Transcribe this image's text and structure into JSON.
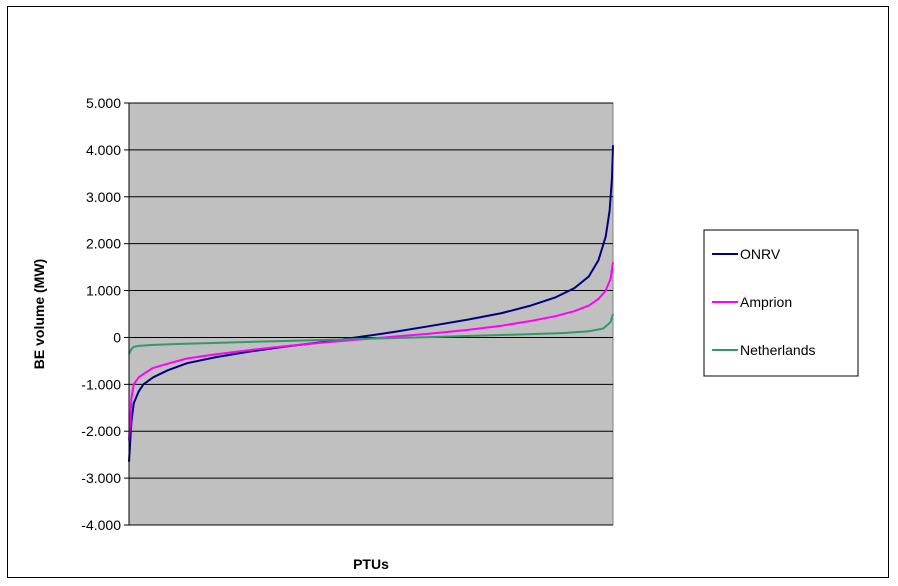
{
  "chart_data": {
    "type": "line",
    "title": "",
    "xlabel": "PTUs",
    "ylabel": "BE volume (MW)",
    "ylim": [
      -4000,
      5000
    ],
    "yticks": [
      5000,
      4000,
      3000,
      2000,
      1000,
      0,
      -1000,
      -2000,
      -3000,
      -4000
    ],
    "ytick_labels": [
      "5.000",
      "4.000",
      "3.000",
      "2.000",
      "1.000",
      "0",
      "-1.000",
      "-2.000",
      "-3.000",
      "-4.000"
    ],
    "xlim": [
      0,
      1
    ],
    "grid": true,
    "legend_position": "right",
    "plot_background": "#C0C0C0",
    "series": [
      {
        "name": "ONRV",
        "color": "#000080",
        "x": [
          0,
          0.005,
          0.01,
          0.02,
          0.03,
          0.05,
          0.08,
          0.12,
          0.18,
          0.25,
          0.32,
          0.4,
          0.47,
          0.55,
          0.62,
          0.7,
          0.77,
          0.83,
          0.88,
          0.92,
          0.95,
          0.97,
          0.985,
          0.993,
          0.998,
          1.0
        ],
        "values": [
          -2650,
          -1800,
          -1400,
          -1150,
          -1000,
          -850,
          -700,
          -550,
          -420,
          -300,
          -200,
          -100,
          0,
          120,
          240,
          380,
          520,
          680,
          850,
          1050,
          1300,
          1650,
          2150,
          2700,
          3400,
          4100
        ]
      },
      {
        "name": "Amprion",
        "color": "#FF00FF",
        "x": [
          0,
          0.005,
          0.01,
          0.02,
          0.03,
          0.05,
          0.08,
          0.12,
          0.18,
          0.25,
          0.32,
          0.4,
          0.47,
          0.55,
          0.62,
          0.7,
          0.77,
          0.83,
          0.88,
          0.92,
          0.95,
          0.97,
          0.985,
          0.995,
          1.0
        ],
        "values": [
          -2200,
          -1300,
          -1000,
          -850,
          -780,
          -650,
          -560,
          -450,
          -360,
          -270,
          -190,
          -110,
          -50,
          20,
          80,
          160,
          250,
          350,
          450,
          560,
          680,
          820,
          1000,
          1250,
          1600
        ]
      },
      {
        "name": "Netherlands",
        "color": "#339966",
        "x": [
          0,
          0.005,
          0.01,
          0.02,
          0.05,
          0.1,
          0.2,
          0.3,
          0.4,
          0.5,
          0.6,
          0.7,
          0.8,
          0.9,
          0.95,
          0.98,
          0.995,
          1.0
        ],
        "values": [
          -350,
          -250,
          -200,
          -180,
          -160,
          -140,
          -110,
          -80,
          -55,
          -25,
          0,
          30,
          60,
          95,
          130,
          190,
          330,
          500
        ]
      }
    ]
  }
}
